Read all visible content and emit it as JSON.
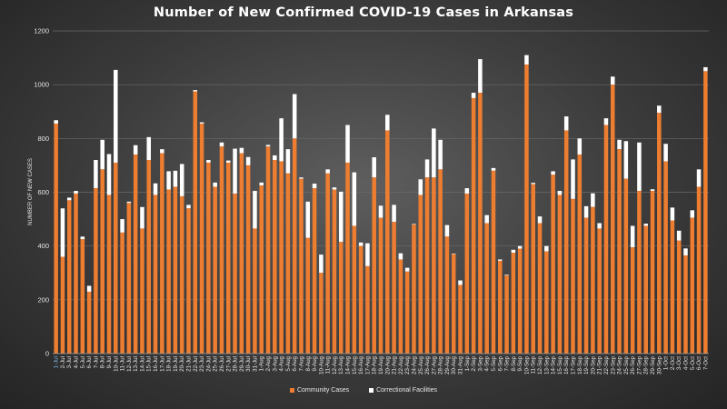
{
  "chart_data": {
    "type": "bar",
    "stacked": true,
    "title": "Number of New Confirmed COVID-19 Cases in Arkansas",
    "ylabel": "NUMBER OF NEW CASES",
    "xlabel": "",
    "ylim": [
      0,
      1200
    ],
    "yticks": [
      0,
      200,
      400,
      600,
      800,
      1000,
      1200
    ],
    "grid": true,
    "legend_position": "bottom",
    "colors": {
      "community": "#ED7D31",
      "correctional": "#FFFFFF"
    },
    "categories": [
      "1-Jul",
      "2-Jul",
      "3-Jul",
      "4-Jul",
      "5-Jul",
      "6-Jul",
      "7-Jul",
      "8-Jul",
      "9-Jul",
      "10-Jul",
      "11-Jul",
      "12-Jul",
      "13-Jul",
      "14-Jul",
      "15-Jul",
      "16-Jul",
      "17-Jul",
      "18-Jul",
      "19-Jul",
      "20-Jul",
      "21-Jul",
      "22-Jul",
      "23-Jul",
      "24-Jul",
      "25-Jul",
      "26-Jul",
      "27-Jul",
      "28-Jul",
      "29-Jul",
      "30-Jul",
      "31-Jul",
      "1-Aug",
      "2-Aug",
      "3-Aug",
      "4-Aug",
      "5-Aug",
      "6-Aug",
      "7-Aug",
      "8-Aug",
      "9-Aug",
      "10-Aug",
      "11-Aug",
      "12-Aug",
      "13-Aug",
      "14-Aug",
      "15-Aug",
      "16-Aug",
      "17-Aug",
      "18-Aug",
      "19-Aug",
      "20-Aug",
      "21-Aug",
      "22-Aug",
      "23-Aug",
      "24-Aug",
      "25-Aug",
      "26-Aug",
      "27-Aug",
      "28-Aug",
      "29-Aug",
      "30-Aug",
      "31-Aug",
      "1-Sep",
      "2-Sep",
      "3-Sep",
      "4-Sep",
      "5-Sep",
      "6-Sep",
      "7-Sep",
      "8-Sep",
      "9-Sep",
      "10-Sep",
      "11-Sep",
      "12-Sep",
      "13-Sep",
      "14-Sep",
      "15-Sep",
      "16-Sep",
      "17-Sep",
      "18-Sep",
      "19-Sep",
      "20-Sep",
      "21-Sep",
      "22-Sep",
      "23-Sep",
      "24-Sep",
      "25-Sep",
      "26-Sep",
      "27-Sep",
      "28-Sep",
      "29-Sep",
      "30-Sep",
      "1-Oct",
      "2-Oct",
      "3-Oct",
      "4-Oct",
      "5-Oct",
      "6-Oct",
      "7-Oct"
    ],
    "series": [
      {
        "name": "Community Cases",
        "values": [
          855,
          360,
          570,
          595,
          425,
          230,
          615,
          685,
          590,
          710,
          450,
          560,
          740,
          465,
          720,
          590,
          745,
          610,
          620,
          585,
          540,
          975,
          855,
          710,
          620,
          770,
          710,
          595,
          745,
          700,
          465,
          625,
          770,
          720,
          715,
          670,
          800,
          650,
          430,
          615,
          300,
          670,
          610,
          415,
          710,
          475,
          400,
          325,
          655,
          505,
          830,
          490,
          350,
          305,
          480,
          590,
          655,
          655,
          685,
          435,
          370,
          255,
          595,
          950,
          970,
          485,
          680,
          345,
          290,
          375,
          390,
          1075,
          630,
          485,
          380,
          665,
          590,
          830,
          575,
          740,
          505,
          545,
          465,
          850,
          1000,
          760,
          650,
          395,
          605,
          475,
          605,
          895,
          715,
          495,
          420,
          365,
          505,
          620,
          1050
        ],
        "stack": [
          [
            855,
            868
          ],
          [
            360,
            540
          ],
          [
            570,
            580
          ],
          [
            595,
            605
          ],
          [
            425,
            435
          ],
          [
            230,
            252
          ],
          [
            615,
            720
          ],
          [
            685,
            795
          ],
          [
            590,
            742
          ],
          [
            710,
            1055
          ],
          [
            450,
            500
          ],
          [
            560,
            565
          ],
          [
            740,
            775
          ],
          [
            465,
            545
          ],
          [
            720,
            805
          ],
          [
            590,
            633
          ],
          [
            745,
            760
          ],
          [
            610,
            678
          ],
          [
            620,
            680
          ],
          [
            585,
            705
          ],
          [
            540,
            553
          ],
          [
            975,
            980
          ],
          [
            855,
            860
          ],
          [
            710,
            720
          ],
          [
            620,
            636
          ],
          [
            770,
            785
          ],
          [
            710,
            718
          ],
          [
            595,
            762
          ],
          [
            745,
            765
          ],
          [
            700,
            731
          ],
          [
            465,
            605
          ],
          [
            625,
            636
          ],
          [
            770,
            776
          ],
          [
            720,
            737
          ],
          [
            715,
            875
          ],
          [
            670,
            760
          ],
          [
            800,
            965
          ],
          [
            650,
            655
          ],
          [
            430,
            565
          ],
          [
            615,
            632
          ],
          [
            300,
            368
          ],
          [
            670,
            685
          ],
          [
            610,
            618
          ],
          [
            415,
            602
          ],
          [
            710,
            850
          ],
          [
            475,
            674
          ],
          [
            400,
            413
          ],
          [
            325,
            410
          ],
          [
            655,
            730
          ],
          [
            505,
            550
          ],
          [
            830,
            888
          ],
          [
            490,
            553
          ],
          [
            350,
            373
          ],
          [
            305,
            319
          ],
          [
            480,
            482
          ],
          [
            590,
            648
          ],
          [
            655,
            722
          ],
          [
            655,
            837
          ],
          [
            685,
            795
          ],
          [
            435,
            478
          ],
          [
            370,
            372
          ],
          [
            255,
            272
          ],
          [
            595,
            615
          ],
          [
            950,
            970
          ],
          [
            970,
            1095
          ],
          [
            485,
            515
          ],
          [
            680,
            690
          ],
          [
            345,
            350
          ],
          [
            290,
            293
          ],
          [
            375,
            386
          ],
          [
            390,
            400
          ],
          [
            1075,
            1110
          ],
          [
            630,
            635
          ],
          [
            485,
            510
          ],
          [
            380,
            400
          ],
          [
            665,
            678
          ],
          [
            590,
            605
          ],
          [
            830,
            882
          ],
          [
            575,
            722
          ],
          [
            740,
            800
          ],
          [
            505,
            548
          ],
          [
            545,
            596
          ],
          [
            465,
            485
          ],
          [
            850,
            875
          ],
          [
            1000,
            1030
          ],
          [
            760,
            795
          ],
          [
            650,
            790
          ],
          [
            395,
            475
          ],
          [
            605,
            785
          ],
          [
            475,
            483
          ],
          [
            605,
            611
          ],
          [
            895,
            922
          ],
          [
            715,
            780
          ],
          [
            495,
            543
          ],
          [
            420,
            457
          ],
          [
            365,
            391
          ],
          [
            505,
            533
          ],
          [
            620,
            685
          ],
          [
            1050,
            1065
          ]
        ]
      },
      {
        "name": "Correctional Facilities"
      }
    ]
  }
}
